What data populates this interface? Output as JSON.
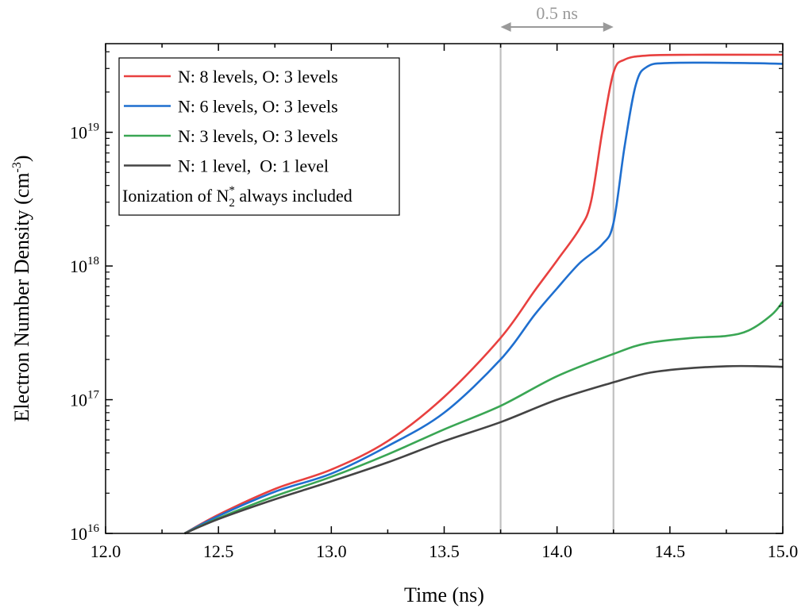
{
  "chart_data": {
    "type": "line",
    "xlabel": "Time (ns)",
    "ylabel": {
      "base": "Electron Number Density (cm",
      "sup": "-3",
      "tail": ")"
    },
    "x_scale": "linear",
    "y_scale": "log",
    "xlim": [
      12.0,
      15.0
    ],
    "ylim": [
      1e+16,
      4.6e+19
    ],
    "x_ticks": [
      12.0,
      12.5,
      13.0,
      13.5,
      14.0,
      14.5,
      15.0
    ],
    "x_tick_labels": [
      "12.0",
      "12.5",
      "13.0",
      "13.5",
      "14.0",
      "14.5",
      "15.0"
    ],
    "y_ticks": [
      {
        "value": 1e+16,
        "base": "10",
        "exp": "16"
      },
      {
        "value": 1e+17,
        "base": "10",
        "exp": "17"
      },
      {
        "value": 1e+18,
        "base": "10",
        "exp": "18"
      },
      {
        "value": 1e+19,
        "base": "10",
        "exp": "19"
      }
    ],
    "grid": false,
    "legend_position": "top-left",
    "legend_note": {
      "pre": "Ionization of N",
      "sub": "2",
      "sup": "*",
      "post": " always included"
    },
    "vlines": [
      13.75,
      14.25
    ],
    "vline_color": "#c0c0c0",
    "annotation": {
      "text": "0.5 ns",
      "from": 13.75,
      "to": 14.25,
      "color": "#9a9a9a"
    },
    "series": [
      {
        "name": "N: 8 levels, O: 3 levels",
        "color": "#e8403f",
        "x": [
          12.35,
          12.5,
          12.75,
          13.0,
          13.25,
          13.5,
          13.75,
          13.9,
          14.0,
          14.1,
          14.15,
          14.2,
          14.25,
          14.3,
          14.4,
          14.6,
          15.0
        ],
        "y": [
          1e+16,
          1.38e+16,
          2.15e+16,
          3e+16,
          4.9e+16,
          1.05e+17,
          2.9e+17,
          6.5e+17,
          1.1e+18,
          1.9e+18,
          3e+18,
          1e+19,
          2.8e+19,
          3.5e+19,
          3.75e+19,
          3.8e+19,
          3.8e+19
        ]
      },
      {
        "name": "N: 6 levels, O: 3 levels",
        "color": "#1f6fcf",
        "x": [
          12.35,
          12.5,
          12.75,
          13.0,
          13.25,
          13.5,
          13.75,
          13.9,
          14.0,
          14.1,
          14.2,
          14.25,
          14.3,
          14.35,
          14.4,
          14.5,
          14.8,
          15.0
        ],
        "y": [
          1e+16,
          1.35e+16,
          2.05e+16,
          2.8e+16,
          4.5e+16,
          8e+16,
          2e+17,
          4.3e+17,
          6.8e+17,
          1.05e+18,
          1.45e+18,
          2.1e+18,
          8e+18,
          2.3e+19,
          3.1e+19,
          3.3e+19,
          3.3e+19,
          3.25e+19
        ]
      },
      {
        "name": "N: 3 levels, O: 3 levels",
        "color": "#3aa654",
        "x": [
          12.35,
          12.5,
          12.75,
          13.0,
          13.25,
          13.5,
          13.75,
          14.0,
          14.25,
          14.4,
          14.6,
          14.75,
          14.85,
          14.95,
          15.0
        ],
        "y": [
          1e+16,
          1.3e+16,
          1.9e+16,
          2.65e+16,
          3.9e+16,
          6e+16,
          9e+16,
          1.5e+17,
          2.2e+17,
          2.65e+17,
          2.9e+17,
          3e+17,
          3.3e+17,
          4.3e+17,
          5.4e+17
        ]
      },
      {
        "name": "N: 1 level,  O: 1 level",
        "color": "#444444",
        "x": [
          12.35,
          12.5,
          12.75,
          13.0,
          13.25,
          13.5,
          13.75,
          14.0,
          14.25,
          14.4,
          14.55,
          14.75,
          14.9,
          15.0
        ],
        "y": [
          1e+16,
          1.28e+16,
          1.8e+16,
          2.45e+16,
          3.4e+16,
          4.9e+16,
          6.8e+16,
          1e+17,
          1.35e+17,
          1.58e+17,
          1.7e+17,
          1.78e+17,
          1.78e+17,
          1.76e+17
        ]
      }
    ]
  }
}
